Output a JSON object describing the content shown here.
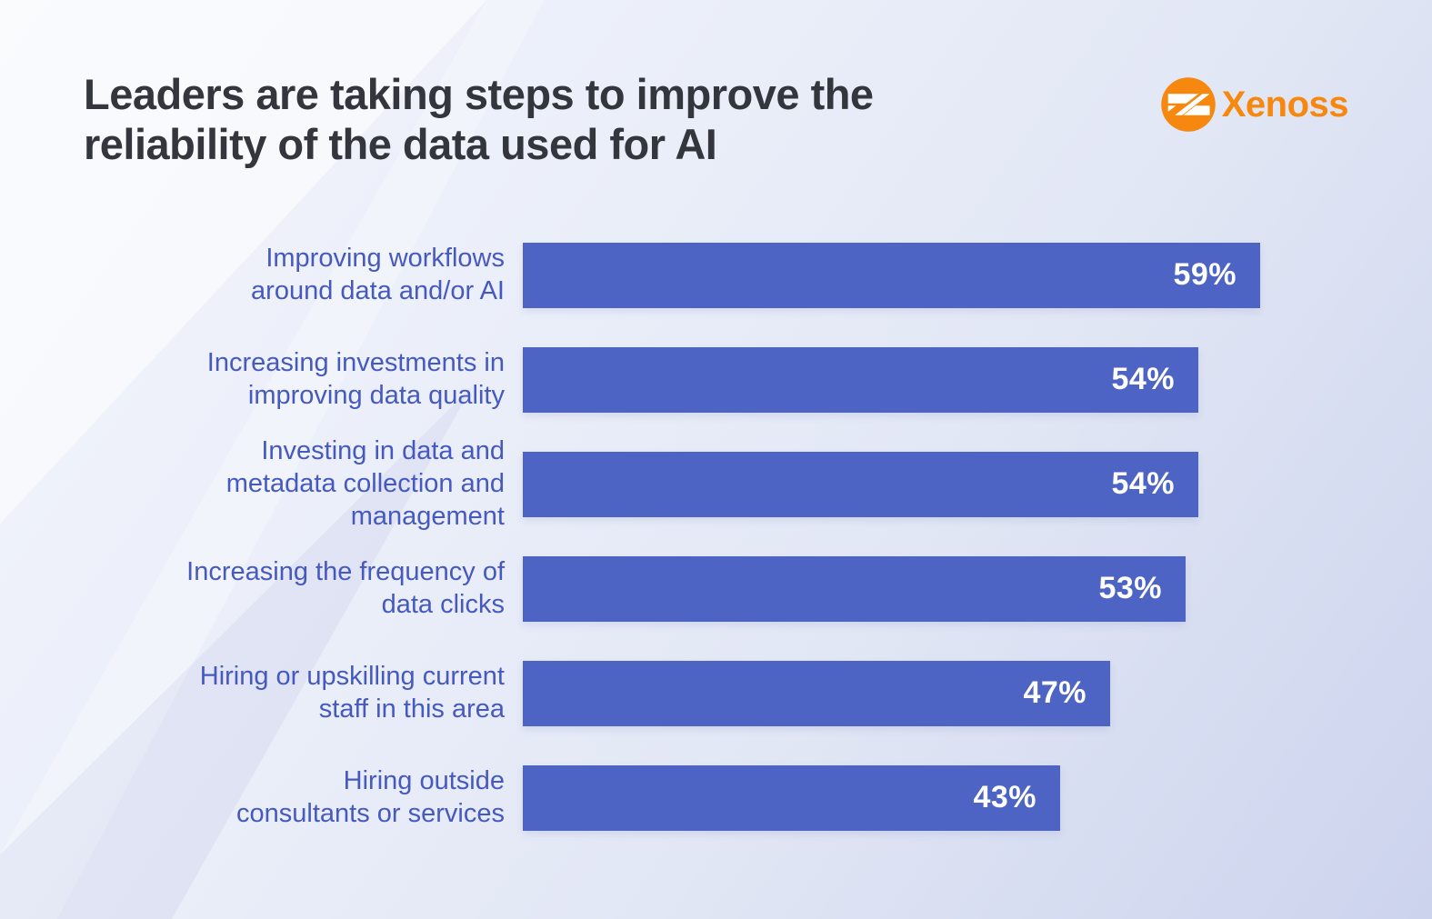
{
  "header": {
    "title": "Leaders are taking steps to improve the reliability of the data used for AI",
    "logo": {
      "text": "Xenoss",
      "color": "#f6870f",
      "icon": "xenoss-mark-icon"
    }
  },
  "colors": {
    "bar_fill": "#4e64c4",
    "label_text": "#4659be",
    "value_text": "#ffffff",
    "title_text": "#33363c",
    "background_light": "#f3f5fb",
    "background_dark": "#ccd3ed"
  },
  "chart_data": {
    "type": "bar",
    "orientation": "horizontal",
    "title": "Leaders are taking steps to improve the reliability of the data used for AI",
    "xlabel": "",
    "ylabel": "",
    "xlim": [
      0,
      59
    ],
    "grid": false,
    "legend": false,
    "value_label_position": "inside-end",
    "categories": [
      "Improving workflows around data and/or AI",
      "Increasing investments in improving data quality",
      "Investing in data and metadata collection and management",
      "Increasing the frequency of data clicks",
      "Hiring or upskilling current staff in this area",
      "Hiring outside consultants or services"
    ],
    "values": [
      59,
      54,
      54,
      53,
      47,
      43
    ],
    "rows": [
      {
        "label_lines": [
          "Improving workflows",
          "around data and/or AI"
        ],
        "value": 59,
        "value_label": "59%"
      },
      {
        "label_lines": [
          "Increasing investments in",
          "improving data quality"
        ],
        "value": 54,
        "value_label": "54%"
      },
      {
        "label_lines": [
          "Investing in data and",
          "metadata collection and",
          "management"
        ],
        "value": 54,
        "value_label": "54%"
      },
      {
        "label_lines": [
          "Increasing the frequency of",
          "data clicks"
        ],
        "value": 53,
        "value_label": "53%"
      },
      {
        "label_lines": [
          "Hiring or upskilling current",
          "staff in this area"
        ],
        "value": 47,
        "value_label": "47%"
      },
      {
        "label_lines": [
          "Hiring outside",
          "consultants or services"
        ],
        "value": 43,
        "value_label": "43%"
      }
    ]
  }
}
